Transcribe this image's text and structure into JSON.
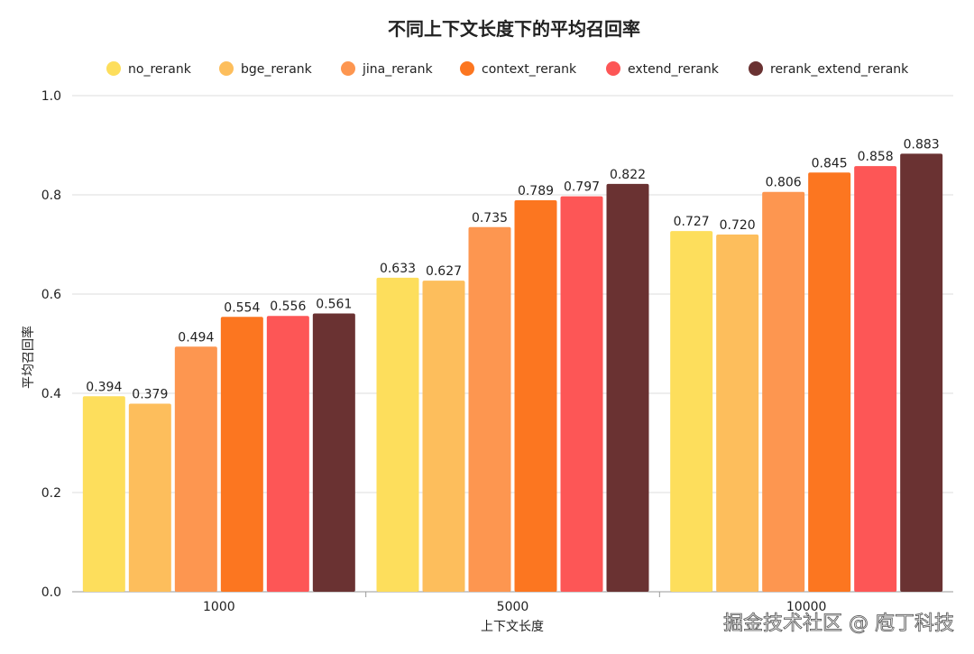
{
  "chart_data": {
    "type": "bar",
    "title": "不同上下文长度下的平均召回率",
    "xlabel": "上下文长度",
    "ylabel": "平均召回率",
    "categories": [
      "1000",
      "5000",
      "10000"
    ],
    "ylim": [
      0,
      1.0
    ],
    "yticks": [
      "0.0",
      "0.2",
      "0.4",
      "0.6",
      "0.8",
      "1.0"
    ],
    "grid": true,
    "legend_position": "top",
    "series": [
      {
        "name": "no_rerank",
        "color": "#FDDE5C",
        "values": [
          0.394,
          0.633,
          0.727
        ]
      },
      {
        "name": "bge_rerank",
        "color": "#FDBE5C",
        "values": [
          0.379,
          0.627,
          0.72
        ]
      },
      {
        "name": "jina_rerank",
        "color": "#FD9650",
        "values": [
          0.494,
          0.735,
          0.806
        ]
      },
      {
        "name": "context_rerank",
        "color": "#FC7620",
        "values": [
          0.554,
          0.789,
          0.845
        ]
      },
      {
        "name": "extend_rerank",
        "color": "#FD5656",
        "values": [
          0.556,
          0.797,
          0.858
        ]
      },
      {
        "name": "rerank_extend_rerank",
        "color": "#6A3232",
        "values": [
          0.561,
          0.822,
          0.883
        ]
      }
    ]
  },
  "watermark": "掘金技术社区 @ 庖丁科技"
}
